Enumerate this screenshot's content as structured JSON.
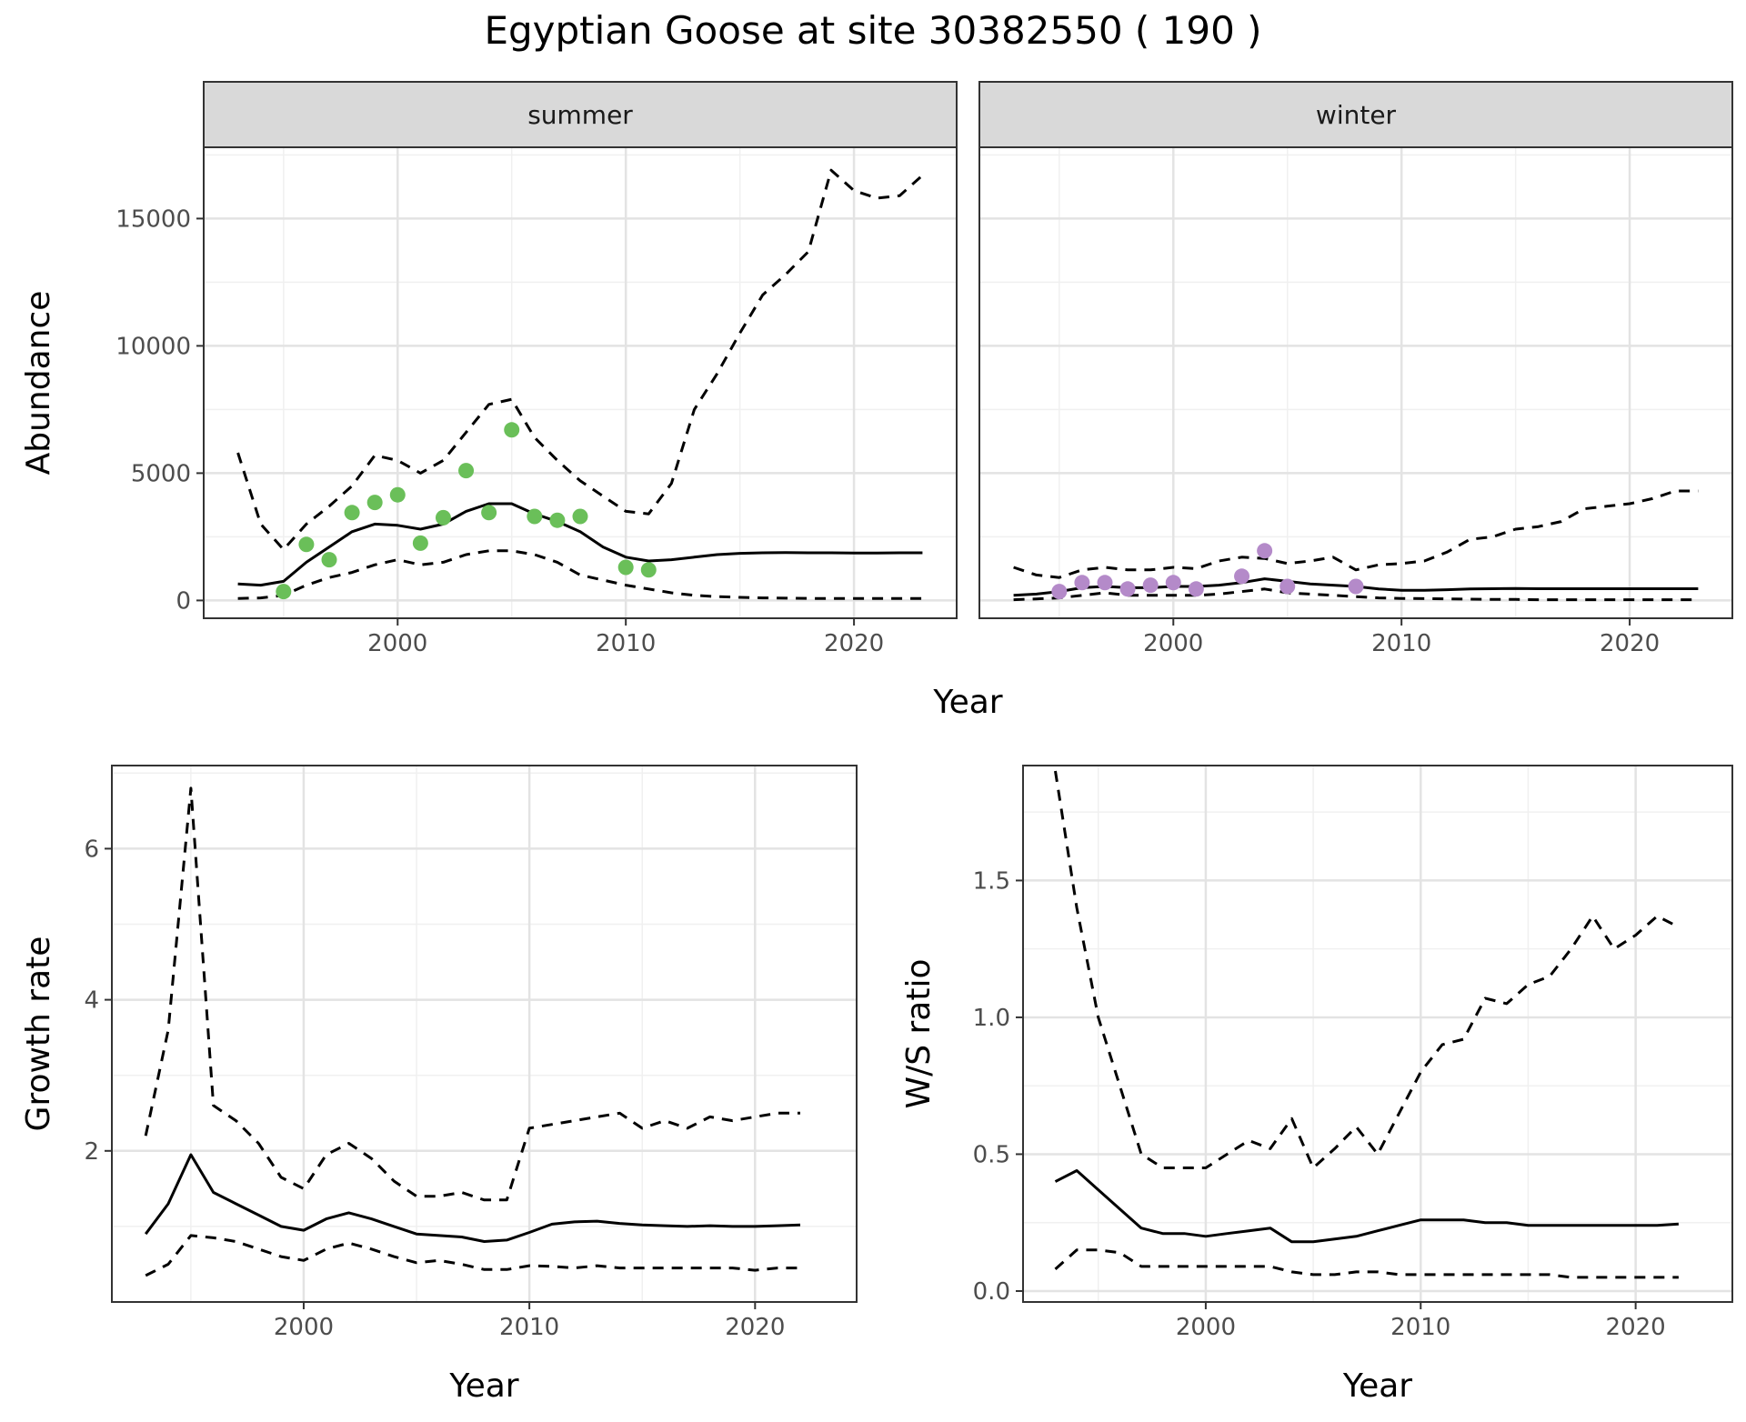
{
  "title": "Egyptian Goose at site 30382550 ( 190 )",
  "colors": {
    "summer_points": "#6abf59",
    "winter_points": "#b48ac9",
    "line": "#000000"
  },
  "chart_data": [
    {
      "id": "abundance",
      "type": "line",
      "facets": [
        "summer",
        "winter"
      ],
      "xlabel": "Year",
      "ylabel": "Abundance",
      "xlim": [
        1991.5,
        2024.5
      ],
      "ylim": [
        -700,
        17800
      ],
      "x_ticks": [
        2000,
        2010,
        2020
      ],
      "y_ticks": [
        0,
        5000,
        10000,
        15000
      ],
      "grid": true,
      "panels": [
        {
          "facet": "summer",
          "x": [
            1993,
            1994,
            1995,
            1996,
            1997,
            1998,
            1999,
            2000,
            2001,
            2002,
            2003,
            2004,
            2005,
            2006,
            2007,
            2008,
            2009,
            2010,
            2011,
            2012,
            2013,
            2014,
            2015,
            2016,
            2017,
            2018,
            2019,
            2020,
            2021,
            2022,
            2023
          ],
          "series": [
            {
              "style": "solid",
              "values": [
                650,
                600,
                750,
                1500,
                2100,
                2700,
                3000,
                2950,
                2800,
                3000,
                3500,
                3800,
                3800,
                3400,
                3100,
                2700,
                2100,
                1700,
                1550,
                1600,
                1700,
                1800,
                1850,
                1870,
                1880,
                1870,
                1870,
                1860,
                1860,
                1870,
                1870
              ]
            },
            {
              "style": "dashed",
              "values": [
                5800,
                3000,
                2000,
                3000,
                3700,
                4500,
                5700,
                5500,
                5000,
                5500,
                6600,
                7700,
                7900,
                6400,
                5500,
                4700,
                4100,
                3500,
                3400,
                4600,
                7500,
                8900,
                10500,
                12000,
                12800,
                13700,
                16900,
                16100,
                15800,
                15900,
                16700
              ]
            },
            {
              "style": "dashed",
              "values": [
                80,
                100,
                200,
                600,
                900,
                1100,
                1400,
                1600,
                1400,
                1500,
                1800,
                1950,
                1950,
                1800,
                1500,
                1000,
                800,
                600,
                450,
                300,
                200,
                150,
                120,
                100,
                90,
                80,
                80,
                80,
                80,
                80,
                80
              ]
            }
          ],
          "points": {
            "color": "#6abf59",
            "x": [
              1995,
              1996,
              1997,
              1998,
              1999,
              2000,
              2001,
              2002,
              2003,
              2004,
              2005,
              2006,
              2007,
              2008,
              2010,
              2011
            ],
            "y": [
              350,
              2200,
              1600,
              3450,
              3850,
              4150,
              2250,
              3250,
              5100,
              3450,
              6700,
              3300,
              3150,
              3300,
              1300,
              1200
            ]
          }
        },
        {
          "facet": "winter",
          "x": [
            1993,
            1994,
            1995,
            1996,
            1997,
            1998,
            1999,
            2000,
            2001,
            2002,
            2003,
            2004,
            2005,
            2006,
            2007,
            2008,
            2009,
            2010,
            2011,
            2012,
            2013,
            2014,
            2015,
            2016,
            2017,
            2018,
            2019,
            2020,
            2021,
            2022,
            2023
          ],
          "series": [
            {
              "style": "solid",
              "values": [
                200,
                250,
                350,
                500,
                550,
                500,
                500,
                550,
                550,
                600,
                700,
                850,
                750,
                650,
                600,
                550,
                450,
                400,
                400,
                420,
                450,
                460,
                470,
                460,
                460,
                460,
                460,
                460,
                460,
                460,
                460
              ]
            },
            {
              "style": "dashed",
              "values": [
                1300,
                1000,
                900,
                1200,
                1300,
                1200,
                1200,
                1300,
                1250,
                1550,
                1700,
                1650,
                1450,
                1550,
                1700,
                1200,
                1400,
                1450,
                1550,
                1900,
                2400,
                2500,
                2800,
                2900,
                3100,
                3600,
                3700,
                3800,
                4000,
                4300,
                4300
              ]
            },
            {
              "style": "dashed",
              "values": [
                30,
                60,
                100,
                200,
                300,
                200,
                200,
                200,
                200,
                250,
                350,
                450,
                300,
                250,
                200,
                150,
                100,
                80,
                70,
                60,
                50,
                40,
                40,
                30,
                30,
                30,
                30,
                30,
                30,
                30,
                30
              ]
            }
          ],
          "points": {
            "color": "#b48ac9",
            "x": [
              1995,
              1996,
              1997,
              1998,
              1999,
              2000,
              2001,
              2003,
              2004,
              2005,
              2008
            ],
            "y": [
              350,
              700,
              700,
              450,
              600,
              700,
              450,
              950,
              1950,
              550,
              550
            ]
          }
        }
      ]
    },
    {
      "id": "growth",
      "type": "line",
      "xlabel": "Year",
      "ylabel": "Growth rate",
      "xlim": [
        1991.5,
        2024.5
      ],
      "ylim": [
        0,
        7.1
      ],
      "x_ticks": [
        2000,
        2010,
        2020
      ],
      "y_ticks": [
        2,
        4,
        6
      ],
      "grid": true,
      "x": [
        1993,
        1994,
        1995,
        1996,
        1997,
        1998,
        1999,
        2000,
        2001,
        2002,
        2003,
        2004,
        2005,
        2006,
        2007,
        2008,
        2009,
        2010,
        2011,
        2012,
        2013,
        2014,
        2015,
        2016,
        2017,
        2018,
        2019,
        2020,
        2021,
        2022
      ],
      "series": [
        {
          "style": "solid",
          "values": [
            0.9,
            1.3,
            1.95,
            1.45,
            1.3,
            1.15,
            1.0,
            0.95,
            1.1,
            1.18,
            1.1,
            1.0,
            0.9,
            0.88,
            0.86,
            0.8,
            0.82,
            0.92,
            1.03,
            1.06,
            1.07,
            1.04,
            1.02,
            1.01,
            1.0,
            1.01,
            1.0,
            1.0,
            1.01,
            1.02
          ]
        },
        {
          "style": "dashed",
          "values": [
            2.2,
            3.6,
            6.8,
            2.6,
            2.4,
            2.1,
            1.65,
            1.5,
            1.95,
            2.1,
            1.9,
            1.6,
            1.4,
            1.4,
            1.45,
            1.35,
            1.35,
            2.3,
            2.35,
            2.4,
            2.45,
            2.5,
            2.3,
            2.4,
            2.3,
            2.45,
            2.4,
            2.45,
            2.5,
            2.5
          ]
        },
        {
          "style": "dashed",
          "values": [
            0.35,
            0.5,
            0.88,
            0.85,
            0.8,
            0.7,
            0.6,
            0.55,
            0.7,
            0.78,
            0.7,
            0.6,
            0.52,
            0.55,
            0.5,
            0.43,
            0.43,
            0.48,
            0.47,
            0.45,
            0.48,
            0.45,
            0.45,
            0.45,
            0.45,
            0.45,
            0.45,
            0.42,
            0.45,
            0.45
          ]
        }
      ]
    },
    {
      "id": "ratio",
      "type": "line",
      "xlabel": "Year",
      "ylabel": "W/S ratio",
      "xlim": [
        1991.5,
        2024.5
      ],
      "ylim": [
        -0.04,
        1.92
      ],
      "x_ticks": [
        2000,
        2010,
        2020
      ],
      "y_ticks": [
        0.0,
        0.5,
        1.0,
        1.5
      ],
      "y_tick_labels": [
        "0.0",
        "0.5",
        "1.0",
        "1.5"
      ],
      "grid": true,
      "x": [
        1993,
        1994,
        1995,
        1996,
        1997,
        1998,
        1999,
        2000,
        2001,
        2002,
        2003,
        2004,
        2005,
        2006,
        2007,
        2008,
        2009,
        2010,
        2011,
        2012,
        2013,
        2014,
        2015,
        2016,
        2017,
        2018,
        2019,
        2020,
        2021,
        2022
      ],
      "series": [
        {
          "style": "solid",
          "values": [
            0.4,
            0.44,
            0.37,
            0.3,
            0.23,
            0.21,
            0.21,
            0.2,
            0.21,
            0.22,
            0.23,
            0.18,
            0.18,
            0.19,
            0.2,
            0.22,
            0.24,
            0.26,
            0.26,
            0.26,
            0.25,
            0.25,
            0.24,
            0.24,
            0.24,
            0.24,
            0.24,
            0.24,
            0.24,
            0.245
          ]
        },
        {
          "style": "dashed",
          "values": [
            1.9,
            1.4,
            1.0,
            0.75,
            0.5,
            0.45,
            0.45,
            0.45,
            0.5,
            0.55,
            0.52,
            0.63,
            0.45,
            0.52,
            0.6,
            0.5,
            0.65,
            0.8,
            0.9,
            0.92,
            1.07,
            1.05,
            1.12,
            1.15,
            1.25,
            1.37,
            1.25,
            1.3,
            1.37,
            1.33
          ]
        },
        {
          "style": "dashed",
          "values": [
            0.08,
            0.15,
            0.15,
            0.14,
            0.09,
            0.09,
            0.09,
            0.09,
            0.09,
            0.09,
            0.09,
            0.07,
            0.06,
            0.06,
            0.07,
            0.07,
            0.06,
            0.06,
            0.06,
            0.06,
            0.06,
            0.06,
            0.06,
            0.06,
            0.05,
            0.05,
            0.05,
            0.05,
            0.05,
            0.05
          ]
        }
      ]
    }
  ]
}
